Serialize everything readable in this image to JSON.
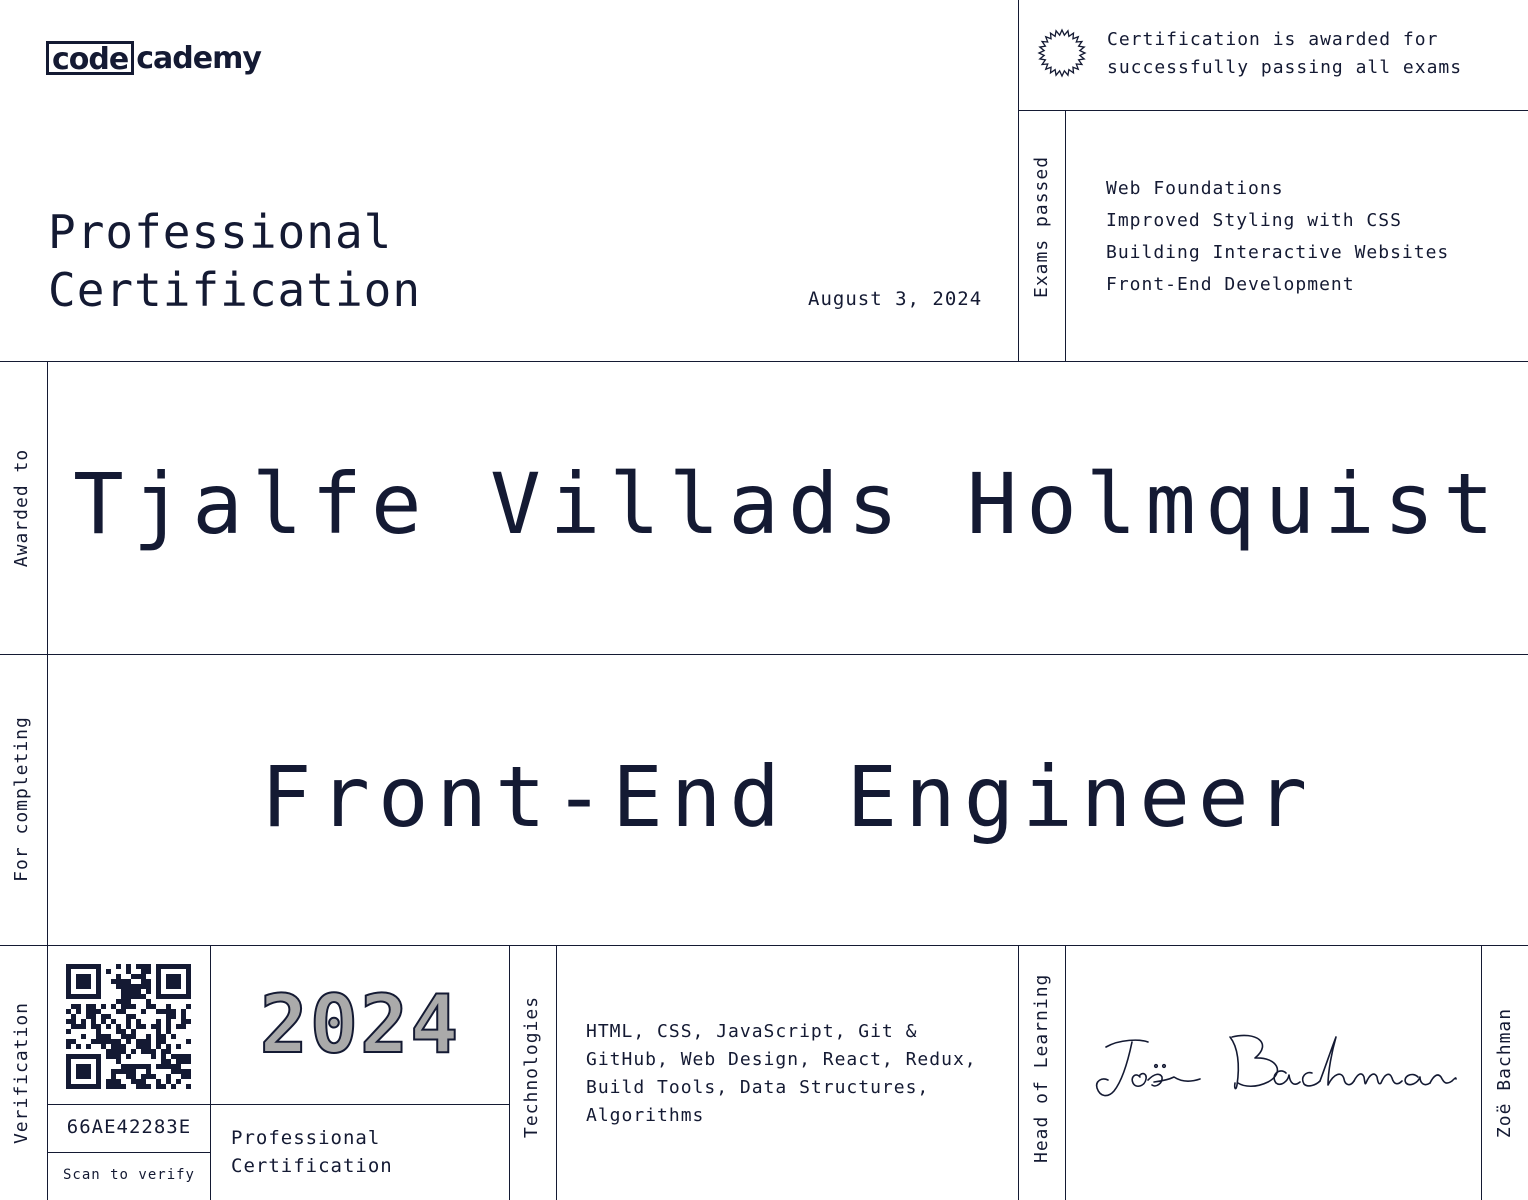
{
  "brand": {
    "logo_boxed": "code",
    "logo_rest": "cademy"
  },
  "header": {
    "title_line1": "Professional",
    "title_line2": "Certification",
    "date": "August 3, 2024"
  },
  "badge": {
    "line1": "Certification is awarded for",
    "line2": "successfully passing all exams"
  },
  "exams": {
    "label": "Exams passed",
    "items": [
      "Web Foundations",
      "Improved Styling with CSS",
      "Building Interactive Websites",
      "Front-End Development"
    ]
  },
  "awarded": {
    "label": "Awarded to",
    "name": "Tjalfe Villads Holmquist"
  },
  "completing": {
    "label": "For completing",
    "program": "Front-End Engineer"
  },
  "verification": {
    "label": "Verification",
    "code": "66AE42283E",
    "scan": "Scan to verify"
  },
  "footer": {
    "year": "2024",
    "cert_line1": "Professional",
    "cert_line2": "Certification"
  },
  "technologies": {
    "label": "Technologies",
    "line1": "HTML, CSS, JavaScript, Git &",
    "line2": "GitHub, Web Design, React, Redux,",
    "line3": "Build Tools, Data Structures,",
    "line4": "Algorithms"
  },
  "signatory": {
    "role": "Head of Learning",
    "name": "Zoë Bachman"
  },
  "colors": {
    "ink": "#141a33",
    "year_fill": "#aaaaaa",
    "background": "#ffffff"
  }
}
